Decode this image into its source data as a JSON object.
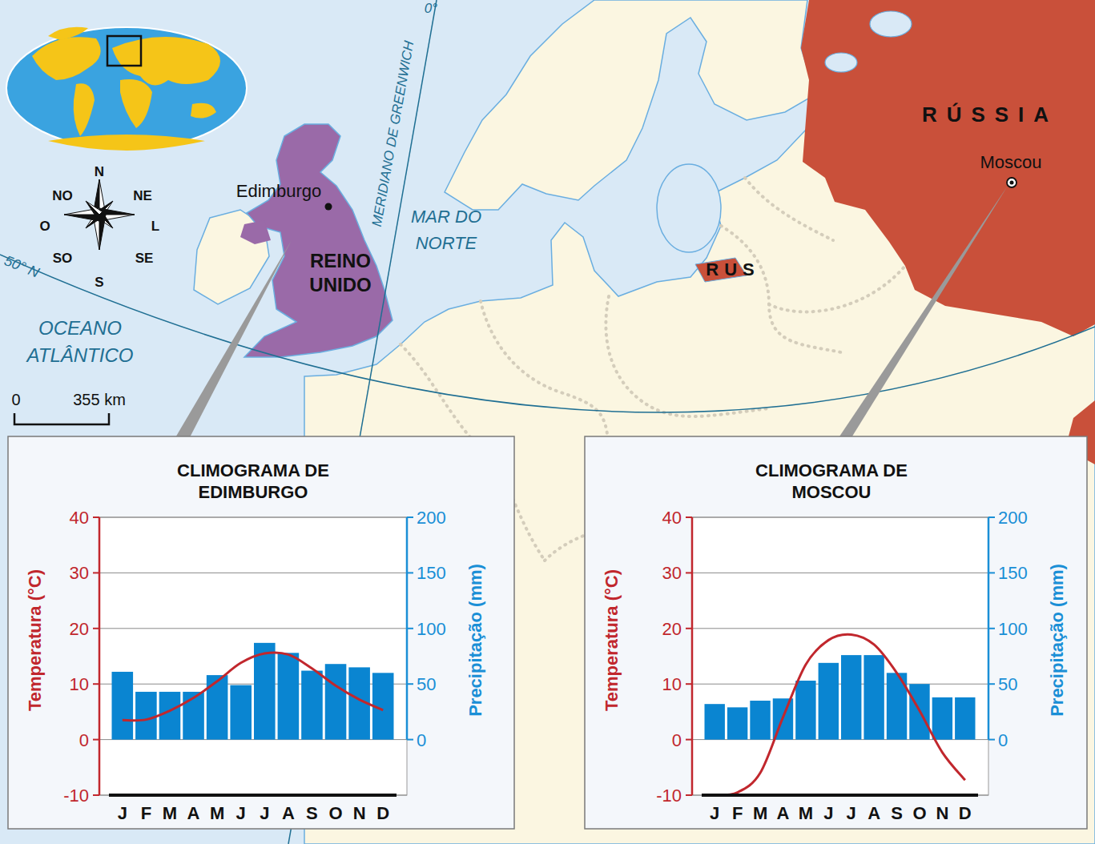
{
  "map": {
    "country_uk": "REINO UNIDO",
    "country_russia": "RÚSSIA",
    "kaliningrad": "RUS",
    "city_edinburgh": "Edimburgo",
    "city_moscow": "Moscou",
    "sea": "MAR DO NORTE",
    "ocean": "OCEANO ATLÂNTICO",
    "meridian": "MERIDIANO DE GREENWICH",
    "meridian_degree": "0°",
    "parallel": "50° N",
    "compass": [
      "N",
      "NE",
      "L",
      "SE",
      "S",
      "SO",
      "O",
      "NO"
    ],
    "scale": {
      "start": "0",
      "end": "355 km"
    }
  },
  "chart_data": [
    {
      "type": "bar",
      "title": "CLIMOGRAMA DE EDIMBURGO",
      "categories": [
        "J",
        "F",
        "M",
        "A",
        "M",
        "J",
        "J",
        "A",
        "S",
        "O",
        "N",
        "D"
      ],
      "y_label": "Temperatura (°C)",
      "y2_label": "Precipitação (mm)",
      "series": [
        {
          "type": "bar",
          "axis": "y2",
          "color": "#0a85d1",
          "values": [
            61,
            43,
            43,
            43,
            58,
            49,
            87,
            78,
            62,
            68,
            65,
            60
          ]
        },
        {
          "type": "line",
          "color": "#c1272d",
          "values": [
            3.5,
            3.6,
            5.2,
            7.5,
            10.5,
            13.8,
            15.5,
            15.3,
            12.8,
            9.7,
            7.2,
            5.3
          ]
        }
      ],
      "ylim": [
        -10,
        40
      ],
      "yticks": [
        -10,
        0,
        10,
        20,
        30,
        40
      ],
      "y2lim": [
        -50,
        200
      ],
      "y2ticks": [
        0,
        50,
        100,
        150,
        200
      ],
      "grid": true
    },
    {
      "type": "bar",
      "title": "CLIMOGRAMA DE MOSCOU",
      "categories": [
        "J",
        "F",
        "M",
        "A",
        "M",
        "J",
        "J",
        "A",
        "S",
        "O",
        "N",
        "D"
      ],
      "y_label": "Temperatura (°C)",
      "y2_label": "Precipitação (mm)",
      "series": [
        {
          "type": "bar",
          "axis": "y2",
          "color": "#0a85d1",
          "values": [
            32,
            29,
            35,
            37,
            53,
            69,
            76,
            76,
            60,
            50,
            38,
            38
          ]
        },
        {
          "type": "line",
          "color": "#c1272d",
          "values": [
            -10,
            -9.5,
            -6,
            4,
            13.5,
            17.9,
            18.9,
            17.1,
            12,
            5.2,
            -2.3,
            -7.3
          ]
        }
      ],
      "ylim": [
        -10,
        40
      ],
      "yticks": [
        -10,
        0,
        10,
        20,
        30,
        40
      ],
      "y2lim": [
        -50,
        200
      ],
      "y2ticks": [
        0,
        50,
        100,
        150,
        200
      ],
      "grid": true
    }
  ]
}
